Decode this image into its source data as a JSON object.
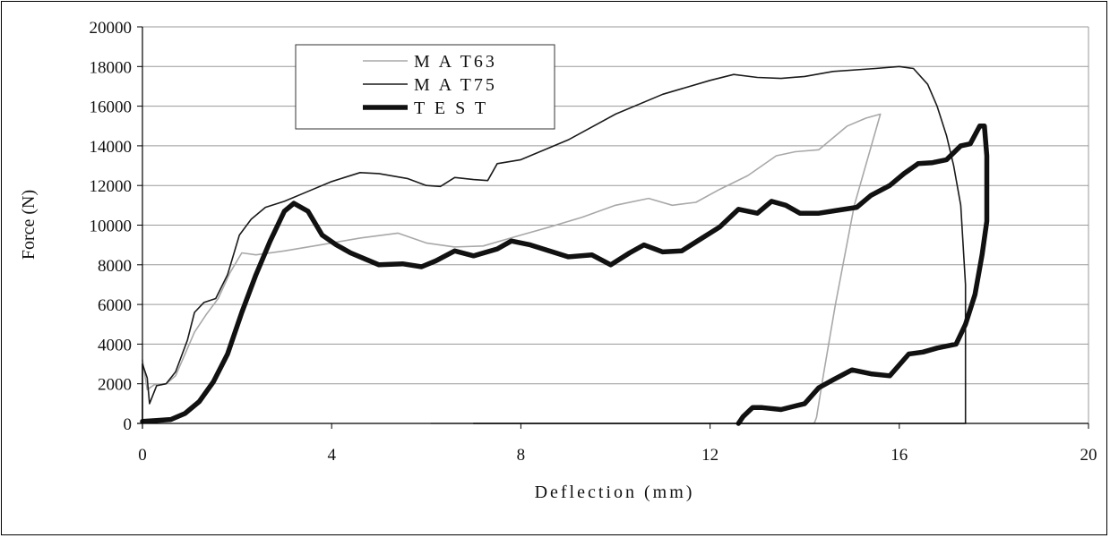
{
  "chart_data": {
    "type": "line",
    "xlabel": "Deflection (mm)",
    "ylabel": "Force (N)",
    "xlim": [
      0,
      20
    ],
    "ylim": [
      0,
      20000
    ],
    "xticks": [
      0,
      4,
      8,
      12,
      16,
      20
    ],
    "yticks": [
      0,
      2000,
      4000,
      6000,
      8000,
      10000,
      12000,
      14000,
      16000,
      18000,
      20000
    ],
    "grid": "horizontal",
    "legend_position": "top-left",
    "series": [
      {
        "name": "M A T63",
        "color": "#a8a8a8",
        "style": "thin",
        "points": [
          [
            0,
            3200
          ],
          [
            0.1,
            1700
          ],
          [
            0.25,
            1950
          ],
          [
            0.5,
            2000
          ],
          [
            0.7,
            2400
          ],
          [
            0.9,
            3500
          ],
          [
            1.1,
            4600
          ],
          [
            1.35,
            5500
          ],
          [
            1.6,
            6300
          ],
          [
            1.85,
            7600
          ],
          [
            2.1,
            8600
          ],
          [
            2.4,
            8500
          ],
          [
            3.0,
            8700
          ],
          [
            4.0,
            9100
          ],
          [
            4.6,
            9350
          ],
          [
            5.4,
            9600
          ],
          [
            6.0,
            9100
          ],
          [
            6.6,
            8900
          ],
          [
            7.2,
            8950
          ],
          [
            8.0,
            9500
          ],
          [
            8.6,
            9900
          ],
          [
            9.3,
            10400
          ],
          [
            10.0,
            11000
          ],
          [
            10.7,
            11350
          ],
          [
            11.2,
            11000
          ],
          [
            11.7,
            11150
          ],
          [
            12.2,
            11800
          ],
          [
            12.8,
            12500
          ],
          [
            13.4,
            13500
          ],
          [
            13.8,
            13700
          ],
          [
            14.3,
            13800
          ],
          [
            14.9,
            15000
          ],
          [
            15.3,
            15400
          ],
          [
            15.6,
            15600
          ],
          [
            15.05,
            11000
          ],
          [
            14.65,
            6000
          ],
          [
            14.4,
            2500
          ],
          [
            14.25,
            300
          ],
          [
            14.2,
            0
          ],
          [
            6.1,
            0
          ]
        ]
      },
      {
        "name": "M A T75",
        "color": "#1a1a1a",
        "style": "medium",
        "points": [
          [
            0,
            0
          ],
          [
            0,
            3000
          ],
          [
            0.1,
            2300
          ],
          [
            0.15,
            1000
          ],
          [
            0.3,
            1900
          ],
          [
            0.5,
            2000
          ],
          [
            0.7,
            2600
          ],
          [
            0.95,
            4200
          ],
          [
            1.1,
            5600
          ],
          [
            1.3,
            6100
          ],
          [
            1.55,
            6300
          ],
          [
            1.8,
            7500
          ],
          [
            2.05,
            9500
          ],
          [
            2.3,
            10300
          ],
          [
            2.6,
            10900
          ],
          [
            3.0,
            11200
          ],
          [
            3.5,
            11700
          ],
          [
            4.0,
            12200
          ],
          [
            4.6,
            12650
          ],
          [
            5.0,
            12600
          ],
          [
            5.6,
            12350
          ],
          [
            6.0,
            12000
          ],
          [
            6.3,
            11950
          ],
          [
            6.6,
            12400
          ],
          [
            7.0,
            12300
          ],
          [
            7.3,
            12250
          ],
          [
            7.5,
            13100
          ],
          [
            8.0,
            13300
          ],
          [
            9.0,
            14300
          ],
          [
            10.0,
            15600
          ],
          [
            11.0,
            16600
          ],
          [
            12.0,
            17300
          ],
          [
            12.5,
            17600
          ],
          [
            13.0,
            17450
          ],
          [
            13.5,
            17400
          ],
          [
            14.0,
            17500
          ],
          [
            14.6,
            17750
          ],
          [
            15.5,
            17900
          ],
          [
            16.0,
            18000
          ],
          [
            16.3,
            17900
          ],
          [
            16.6,
            17100
          ],
          [
            16.8,
            16000
          ],
          [
            17.0,
            14500
          ],
          [
            17.15,
            13000
          ],
          [
            17.3,
            11000
          ],
          [
            17.4,
            7000
          ],
          [
            17.4,
            0
          ],
          [
            7.0,
            0
          ]
        ]
      },
      {
        "name": "T E S T",
        "color": "#111111",
        "style": "thick",
        "points": [
          [
            0,
            100
          ],
          [
            0.3,
            150
          ],
          [
            0.6,
            200
          ],
          [
            0.9,
            500
          ],
          [
            1.2,
            1100
          ],
          [
            1.5,
            2100
          ],
          [
            1.8,
            3500
          ],
          [
            2.1,
            5600
          ],
          [
            2.4,
            7500
          ],
          [
            2.7,
            9200
          ],
          [
            3.0,
            10700
          ],
          [
            3.2,
            11100
          ],
          [
            3.5,
            10700
          ],
          [
            3.8,
            9500
          ],
          [
            4.1,
            9000
          ],
          [
            4.4,
            8600
          ],
          [
            4.7,
            8300
          ],
          [
            5.0,
            8000
          ],
          [
            5.5,
            8050
          ],
          [
            5.9,
            7900
          ],
          [
            6.2,
            8200
          ],
          [
            6.6,
            8700
          ],
          [
            7.0,
            8450
          ],
          [
            7.5,
            8800
          ],
          [
            7.8,
            9200
          ],
          [
            8.2,
            9000
          ],
          [
            8.6,
            8700
          ],
          [
            9.0,
            8400
          ],
          [
            9.5,
            8500
          ],
          [
            9.9,
            8000
          ],
          [
            10.3,
            8600
          ],
          [
            10.6,
            9000
          ],
          [
            11.0,
            8650
          ],
          [
            11.4,
            8700
          ],
          [
            11.8,
            9300
          ],
          [
            12.2,
            9900
          ],
          [
            12.6,
            10800
          ],
          [
            13.0,
            10600
          ],
          [
            13.3,
            11200
          ],
          [
            13.6,
            11000
          ],
          [
            13.9,
            10600
          ],
          [
            14.3,
            10600
          ],
          [
            14.7,
            10750
          ],
          [
            15.1,
            10900
          ],
          [
            15.4,
            11500
          ],
          [
            15.8,
            12000
          ],
          [
            16.1,
            12600
          ],
          [
            16.4,
            13100
          ],
          [
            16.7,
            13150
          ],
          [
            17.0,
            13300
          ],
          [
            17.3,
            14000
          ],
          [
            17.5,
            14100
          ],
          [
            17.7,
            15000
          ],
          [
            17.8,
            15000
          ],
          [
            17.85,
            13500
          ],
          [
            17.85,
            10200
          ],
          [
            17.75,
            8500
          ],
          [
            17.6,
            6500
          ],
          [
            17.4,
            5000
          ],
          [
            17.2,
            4000
          ],
          [
            16.8,
            3800
          ],
          [
            16.5,
            3600
          ],
          [
            16.2,
            3500
          ],
          [
            15.8,
            2400
          ],
          [
            15.4,
            2500
          ],
          [
            15.0,
            2700
          ],
          [
            14.6,
            2200
          ],
          [
            14.3,
            1800
          ],
          [
            14.0,
            1000
          ],
          [
            13.5,
            700
          ],
          [
            13.1,
            800
          ],
          [
            12.9,
            800
          ],
          [
            12.7,
            350
          ],
          [
            12.6,
            0
          ]
        ]
      }
    ]
  }
}
